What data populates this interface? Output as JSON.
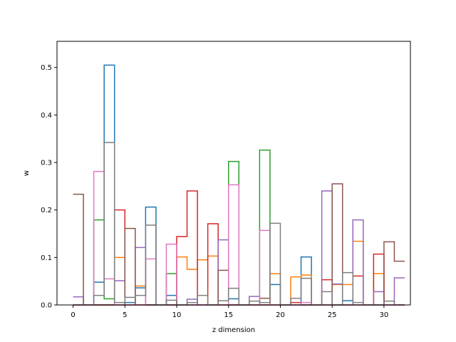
{
  "chart_data": {
    "type": "step",
    "xlabel": "z dimension",
    "ylabel": "w",
    "xlim": [
      -1.55,
      32.55
    ],
    "ylim": [
      0,
      0.555
    ],
    "xticks": [
      0,
      5,
      10,
      15,
      20,
      25,
      30
    ],
    "yticks": [
      0.0,
      0.1,
      0.2,
      0.3,
      0.4,
      0.5
    ],
    "ytick_labels": [
      "0.0",
      "0.1",
      "0.2",
      "0.3",
      "0.4",
      "0.5"
    ],
    "grid": false,
    "legend": "none",
    "drawstyle": "steps-post",
    "series": [
      {
        "color": "#1f77b4",
        "x": [
          0,
          1,
          2,
          3,
          4,
          5,
          6,
          7,
          8,
          9,
          10,
          11,
          12,
          13,
          14,
          15,
          16,
          17,
          18,
          19,
          20,
          21,
          22,
          23,
          24,
          25,
          26,
          27,
          28,
          29,
          30,
          31
        ],
        "values": [
          0,
          0,
          0.048,
          0.505,
          0,
          0.005,
          0.036,
          0.206,
          0,
          0.02,
          0,
          0,
          0,
          0,
          0,
          0.013,
          0,
          0,
          0,
          0.043,
          0,
          0,
          0.101,
          0,
          0,
          0,
          0.009,
          0,
          0,
          0,
          0,
          0
        ]
      },
      {
        "color": "#ff7f0e",
        "x": [
          0,
          1,
          2,
          3,
          4,
          5,
          6,
          7,
          8,
          9,
          10,
          11,
          12,
          13,
          14,
          15,
          16,
          17,
          18,
          19,
          20,
          21,
          22,
          23,
          24,
          25,
          26,
          27,
          28,
          29,
          30,
          31
        ],
        "values": [
          0,
          0,
          0,
          0,
          0.1,
          0,
          0.04,
          0,
          0,
          0,
          0.101,
          0.075,
          0.095,
          0.103,
          0,
          0,
          0,
          0,
          0,
          0.066,
          0,
          0.059,
          0.063,
          0,
          0,
          0.043,
          0.043,
          0.134,
          0,
          0.066,
          0,
          0
        ]
      },
      {
        "color": "#2ca02c",
        "x": [
          0,
          1,
          2,
          3,
          4,
          5,
          6,
          7,
          8,
          9,
          10,
          11,
          12,
          13,
          14,
          15,
          16,
          17,
          18,
          19,
          20,
          21,
          22,
          23,
          24,
          25,
          26,
          27,
          28,
          29,
          30,
          31
        ],
        "values": [
          0,
          0,
          0.179,
          0.013,
          0,
          0,
          0,
          0,
          0,
          0.066,
          0,
          0,
          0,
          0,
          0,
          0.302,
          0,
          0,
          0.326,
          0,
          0,
          0,
          0,
          0,
          0,
          0,
          0,
          0,
          0,
          0,
          0,
          0
        ]
      },
      {
        "color": "#d62728",
        "x": [
          0,
          1,
          2,
          3,
          4,
          5,
          6,
          7,
          8,
          9,
          10,
          11,
          12,
          13,
          14,
          15,
          16,
          17,
          18,
          19,
          20,
          21,
          22,
          23,
          24,
          25,
          26,
          27,
          28,
          29,
          30,
          31
        ],
        "values": [
          0,
          0,
          0,
          0,
          0.2,
          0,
          0,
          0,
          0,
          0,
          0.144,
          0.24,
          0,
          0.171,
          0,
          0,
          0,
          0,
          0,
          0,
          0,
          0.005,
          0,
          0,
          0.053,
          0,
          0,
          0.061,
          0,
          0.107,
          0,
          0
        ]
      },
      {
        "color": "#9467bd",
        "x": [
          0,
          1,
          2,
          3,
          4,
          5,
          6,
          7,
          8,
          9,
          10,
          11,
          12,
          13,
          14,
          15,
          16,
          17,
          18,
          19,
          20,
          21,
          22,
          23,
          24,
          25,
          26,
          27,
          28,
          29,
          30,
          31
        ],
        "values": [
          0.017,
          0,
          0,
          0,
          0.051,
          0,
          0.121,
          0,
          0,
          0,
          0,
          0.012,
          0,
          0,
          0.137,
          0,
          0,
          0.018,
          0,
          0,
          0,
          0,
          0,
          0,
          0.24,
          0.044,
          0,
          0.179,
          0,
          0.028,
          0,
          0.057
        ]
      },
      {
        "color": "#8c564b",
        "x": [
          0,
          1,
          2,
          3,
          4,
          5,
          6,
          7,
          8,
          9,
          10,
          11,
          12,
          13,
          14,
          15,
          16,
          17,
          18,
          19,
          20,
          21,
          22,
          23,
          24,
          25,
          26,
          27,
          28,
          29,
          30,
          31
        ],
        "values": [
          0.233,
          0,
          0,
          0,
          0,
          0.161,
          0,
          0,
          0,
          0,
          0,
          0,
          0,
          0,
          0.073,
          0,
          0,
          0,
          0.014,
          0,
          0,
          0,
          0,
          0,
          0,
          0.255,
          0,
          0,
          0,
          0,
          0.133,
          0.092
        ]
      },
      {
        "color": "#e377c2",
        "x": [
          0,
          1,
          2,
          3,
          4,
          5,
          6,
          7,
          8,
          9,
          10,
          11,
          12,
          13,
          14,
          15,
          16,
          17,
          18,
          19,
          20,
          21,
          22,
          23,
          24,
          25,
          26,
          27,
          28,
          29,
          30,
          31
        ],
        "values": [
          0,
          0,
          0.281,
          0.055,
          0,
          0,
          0,
          0.097,
          0,
          0.128,
          0,
          0,
          0,
          0,
          0,
          0.253,
          0,
          0,
          0.157,
          0,
          0,
          0,
          0.005,
          0,
          0,
          0,
          0,
          0,
          0,
          0,
          0,
          0
        ]
      },
      {
        "color": "#7f7f7f",
        "x": [
          0,
          1,
          2,
          3,
          4,
          5,
          6,
          7,
          8,
          9,
          10,
          11,
          12,
          13,
          14,
          15,
          16,
          17,
          18,
          19,
          20,
          21,
          22,
          23,
          24,
          25,
          26,
          27,
          28,
          29,
          30,
          31
        ],
        "values": [
          0,
          0,
          0.02,
          0.342,
          0.005,
          0.016,
          0.02,
          0.168,
          0,
          0.01,
          0,
          0.005,
          0.02,
          0,
          0.009,
          0.035,
          0,
          0.008,
          0.005,
          0.172,
          0,
          0.014,
          0.056,
          0,
          0.028,
          0,
          0.068,
          0.005,
          0,
          0,
          0.008,
          0
        ]
      }
    ]
  }
}
